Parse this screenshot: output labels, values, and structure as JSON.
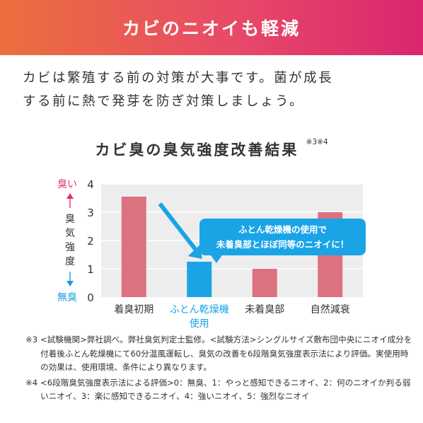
{
  "header": {
    "title": "カビのニオイも軽減"
  },
  "intro": {
    "line1": "カビは繁殖する前の対策が大事です。菌が成長",
    "line2": "する前に熱で発芽を防ぎ対策しましょう。"
  },
  "chart_data": {
    "type": "bar",
    "title": "カビ臭の臭気強度改善結果",
    "title_note": "※3※4",
    "categories": [
      "着臭初期",
      "ふとん乾燥機使用",
      "未着臭部",
      "自然減衰"
    ],
    "category_labels": [
      [
        "着臭初期"
      ],
      [
        "ふとん乾燥機",
        "使用"
      ],
      [
        "未着臭部"
      ],
      [
        "自然減衰"
      ]
    ],
    "values": [
      3.55,
      1.25,
      1.0,
      3.0
    ],
    "ylim": [
      0,
      4
    ],
    "yticks": [
      "0",
      "1",
      "2",
      "3",
      "4"
    ],
    "ylabel": "臭気強度",
    "y_top_label": "臭い",
    "y_bottom_label": "無臭",
    "grid": true,
    "highlight_index": 1,
    "colors": {
      "bar": "#dc7180",
      "highlight": "#1aa4e6",
      "top_label": "#e0306a",
      "bottom_label": "#1a9be0",
      "plot_bg": "#eeeded",
      "grid": "#ffffff"
    },
    "callout": {
      "line1": "ふとん乾燥機の使用で",
      "line2": "未着臭部とほぼ同等のニオイに！"
    }
  },
  "footnotes": [
    {
      "mark": "※3",
      "text": "<試験機関>弊社調べ。弊社臭気判定士監修。<試験方法>シングルサイズ敷布団中央にニオイ成分を付着後ふとん乾燥機にて60分温風運転し、臭気の改善を6段階臭気強度表示法により評価。実使用時の効果は、使用環境、条件により異なります。"
    },
    {
      "mark": "※4",
      "text": "<6段階臭気強度表示法による評価>0：無臭、1：やっと感知できるニオイ、2：何のニオイか判る弱いニオイ、3：楽に感知できるニオイ、4：強いニオイ、5：強烈なニオイ"
    }
  ]
}
